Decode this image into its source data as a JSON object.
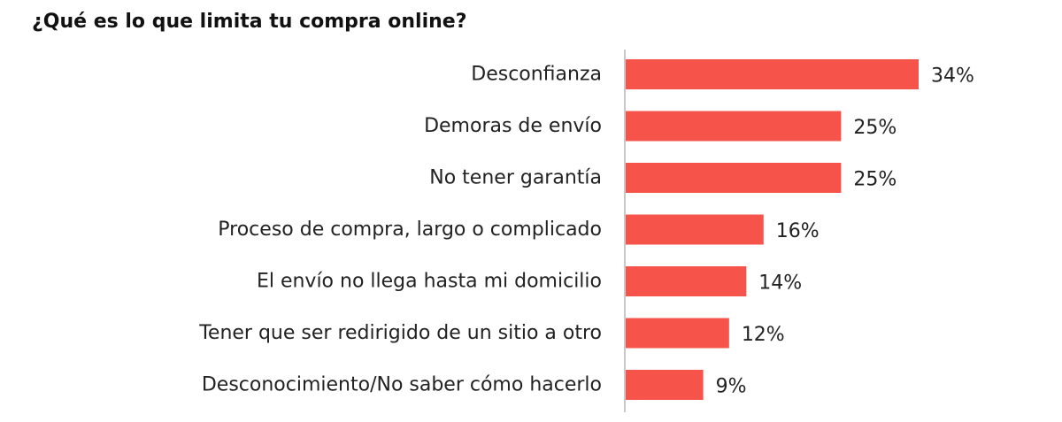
{
  "chart_data": {
    "type": "bar",
    "orientation": "horizontal",
    "title": "¿Qué es lo que limita tu compra online?",
    "categories": [
      "Desconfianza",
      "Demoras de envío",
      "No tener garantía",
      "Proceso de compra, largo o complicado",
      "El envío no llega hasta mi domicilio",
      "Tener que ser redirigido de un sitio a otro",
      "Desconocimiento/No saber cómo hacerlo"
    ],
    "values": [
      34,
      25,
      25,
      16,
      14,
      12,
      9
    ],
    "value_labels": [
      "34%",
      "25%",
      "25%",
      "16%",
      "14%",
      "12%",
      "9%"
    ],
    "unit": "%",
    "xlabel": "",
    "ylabel": "",
    "xlim": [
      0,
      34
    ],
    "grid": false,
    "bar_color": "#F6544A",
    "axis_color": "#C8C8C8"
  }
}
